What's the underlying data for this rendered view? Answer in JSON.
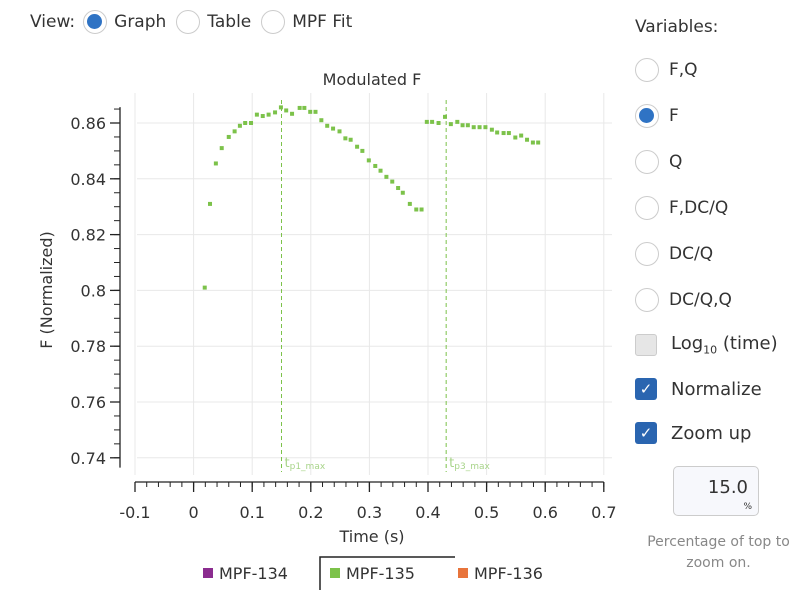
{
  "view": {
    "label": "View:",
    "options": [
      {
        "label": "Graph",
        "selected": true
      },
      {
        "label": "Table",
        "selected": false
      },
      {
        "label": "MPF Fit",
        "selected": false
      }
    ]
  },
  "variables": {
    "title": "Variables:",
    "options": [
      {
        "label": "F,Q",
        "selected": false
      },
      {
        "label": "F",
        "selected": true
      },
      {
        "label": "Q",
        "selected": false
      },
      {
        "label": "F,DC/Q",
        "selected": false
      },
      {
        "label": "DC/Q",
        "selected": false
      },
      {
        "label": "DC/Q,Q",
        "selected": false
      }
    ],
    "log_label": "Log",
    "log_sub": "10",
    "log_suffix": " (time)",
    "log_checked": false,
    "normalize_label": "Normalize",
    "normalize_checked": true,
    "zoom_label": "Zoom up",
    "zoom_checked": true,
    "zoom_value": "15.0",
    "zoom_unit": "%",
    "zoom_hint": "Percentage of top to zoom on."
  },
  "colors": {
    "accent": "#2f73c4",
    "series": "#7cc24a"
  },
  "chart_data": {
    "type": "scatter",
    "title": "Modulated F",
    "xlabel": "Time (s)",
    "ylabel": "F (Normalized)",
    "xlim": [
      -0.1,
      0.7
    ],
    "ylim": [
      0.7365,
      0.8657
    ],
    "xticks": [
      "-0.1",
      "0",
      "0.1",
      "0.2",
      "0.3",
      "0.4",
      "0.5",
      "0.6",
      "0.7"
    ],
    "yticks": [
      "0.74",
      "0.76",
      "0.78",
      "0.8",
      "0.82",
      "0.84",
      "0.86"
    ],
    "grid": true,
    "legend": {
      "placement": "bottom",
      "entries": [
        {
          "name": "MPF-134",
          "color": "#8b2c8f",
          "active": false
        },
        {
          "name": "MPF-135",
          "color": "#7cc24a",
          "active": true
        },
        {
          "name": "MPF-136",
          "color": "#e8743b",
          "active": false
        }
      ]
    },
    "series": [
      {
        "name": "MPF-135",
        "color": "#7cc24a",
        "x": [
          0.019,
          0.028,
          0.038,
          0.048,
          0.06,
          0.07,
          0.079,
          0.088,
          0.098,
          0.108,
          0.118,
          0.128,
          0.139,
          0.149,
          0.158,
          0.168,
          0.181,
          0.189,
          0.199,
          0.208,
          0.218,
          0.228,
          0.238,
          0.249,
          0.259,
          0.268,
          0.279,
          0.288,
          0.299,
          0.31,
          0.319,
          0.329,
          0.339,
          0.349,
          0.357,
          0.369,
          0.38,
          0.389,
          0.398,
          0.407,
          0.418,
          0.429,
          0.439,
          0.45,
          0.459,
          0.468,
          0.478,
          0.488,
          0.498,
          0.509,
          0.518,
          0.529,
          0.538,
          0.549,
          0.559,
          0.569,
          0.579,
          0.588
        ],
        "y": [
          0.801,
          0.831,
          0.8455,
          0.851,
          0.855,
          0.857,
          0.859,
          0.86,
          0.86,
          0.863,
          0.8625,
          0.863,
          0.8638,
          0.8656,
          0.8645,
          0.8633,
          0.8654,
          0.8654,
          0.864,
          0.864,
          0.861,
          0.859,
          0.858,
          0.857,
          0.8545,
          0.854,
          0.8515,
          0.85,
          0.8466,
          0.8446,
          0.8429,
          0.8407,
          0.839,
          0.8367,
          0.835,
          0.831,
          0.829,
          0.829,
          0.8604,
          0.8604,
          0.86,
          0.8622,
          0.8596,
          0.8604,
          0.8592,
          0.8592,
          0.8585,
          0.8585,
          0.8585,
          0.8576,
          0.8566,
          0.8564,
          0.8564,
          0.8548,
          0.8555,
          0.854,
          0.853,
          0.853
        ]
      }
    ],
    "annotations": [
      {
        "x": 0.15,
        "label": "t",
        "sub": "p1_max"
      },
      {
        "x": 0.431,
        "label": "t",
        "sub": "p3_max"
      }
    ]
  }
}
